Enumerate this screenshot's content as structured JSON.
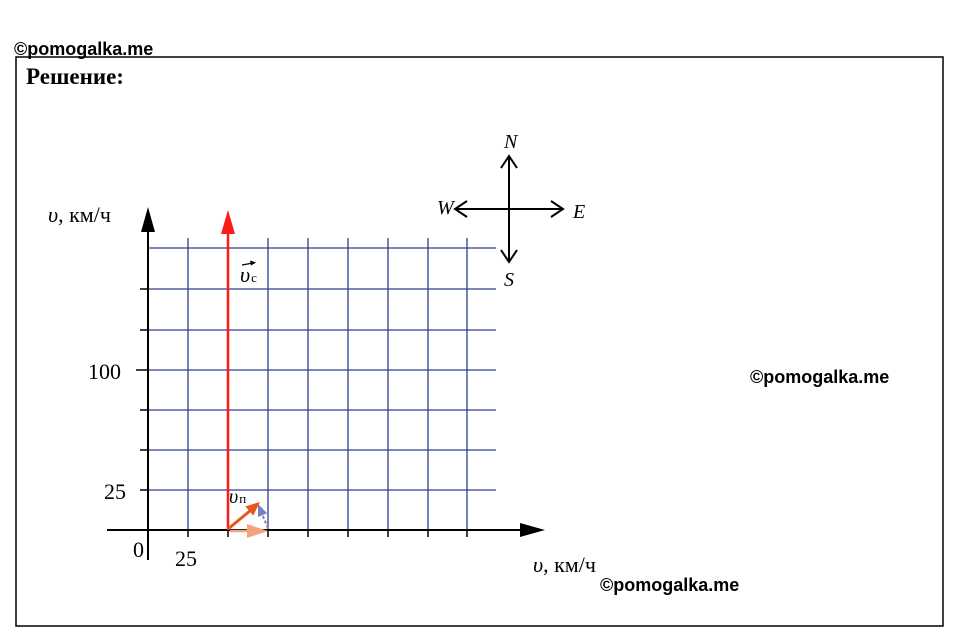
{
  "watermarks": {
    "top": "©pomogalka.me",
    "middle": "©pomogalka.me",
    "bottom": "©pomogalka.me"
  },
  "heading": "Решение:",
  "compass": {
    "north": "N",
    "east": "E",
    "west": "W",
    "south": "S"
  },
  "axes": {
    "y_label": {
      "symbol": "υ",
      "unit": ", км/ч"
    },
    "x_label": {
      "symbol": "υ",
      "unit": ", км/ч"
    },
    "origin": "0",
    "y_tick_labels": [
      "25",
      "100"
    ],
    "x_tick_labels": [
      "25"
    ]
  },
  "vectors": {
    "red": {
      "symbol": "υ",
      "subscript": "с",
      "color": "#FF1A1A"
    },
    "orange": {
      "symbol": "υ",
      "subscript": "п",
      "color": "#E4571C"
    },
    "peach_color": "#F4A47C",
    "blue_color": "#7B7FBF"
  },
  "colors": {
    "grid": "#2E3D8F",
    "axes": "#000000",
    "background": "#FFFFFF"
  }
}
